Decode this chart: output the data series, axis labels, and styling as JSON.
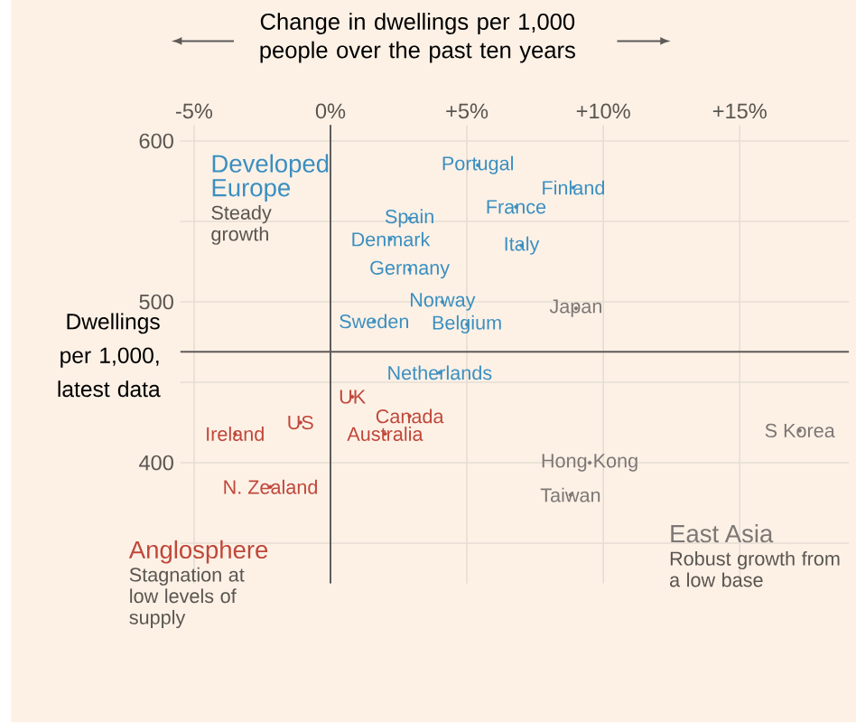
{
  "chart_data": {
    "type": "scatter",
    "marker": "circle",
    "legend": false,
    "grid": true,
    "xlabel": "Change in dwellings per 1,000 people over the past ten years",
    "ylabel": "Dwellings per 1,000, latest data",
    "xlim": [
      -5.5,
      19
    ],
    "ylim": [
      325,
      610
    ],
    "xticks": [
      {
        "value": -5,
        "label": "-5%"
      },
      {
        "value": 0,
        "label": "0%"
      },
      {
        "value": 5,
        "label": "+5%"
      },
      {
        "value": 10,
        "label": "+10%"
      },
      {
        "value": 15,
        "label": "+15%"
      }
    ],
    "yticks": [
      {
        "value": 350,
        "label": null
      },
      400,
      {
        "value": 450,
        "label": null
      },
      500,
      {
        "value": 550,
        "label": null
      },
      600
    ],
    "ref_lines": [
      {
        "axis": "x",
        "value": 0
      },
      {
        "axis": "y",
        "value": 469
      }
    ],
    "annotations": [
      "Steady growth",
      "Stagnation at low levels of supply",
      "Robust growth from a low base"
    ],
    "series": [
      {
        "name": "Developed Europe",
        "color": "#3a8fc0",
        "x": [
          5.4,
          8.9,
          6.8,
          2.9,
          2.2,
          7.0,
          2.9,
          4.1,
          1.6,
          5.0,
          4.0
        ],
        "values": [
          585,
          571,
          559,
          552,
          539,
          535,
          520,
          500,
          488,
          486,
          456
        ],
        "value_labels": [
          "Portugal",
          "Finland",
          "France",
          "Spain",
          "Denmark",
          "Italy",
          "Germany",
          "Norway",
          "Sweden",
          "Belgium",
          "Netherlands"
        ]
      },
      {
        "name": "Anglosphere",
        "color": "#c0473a",
        "x": [
          0.8,
          2.9,
          2.0,
          -1.1,
          -3.5,
          -2.2
        ],
        "values": [
          441,
          429,
          418,
          425,
          418,
          385
        ],
        "value_labels": [
          "UK",
          "Canada",
          "Australia",
          "US",
          "Ireland",
          "N. Zealand"
        ]
      },
      {
        "name": "East Asia",
        "color": "#7d7775",
        "x": [
          9.0,
          9.5,
          8.8,
          17.2
        ],
        "values": [
          496,
          400,
          380,
          420
        ],
        "value_labels": [
          "Japan",
          "Hong Kong",
          "Taiwan",
          "S Korea"
        ]
      }
    ]
  }
}
